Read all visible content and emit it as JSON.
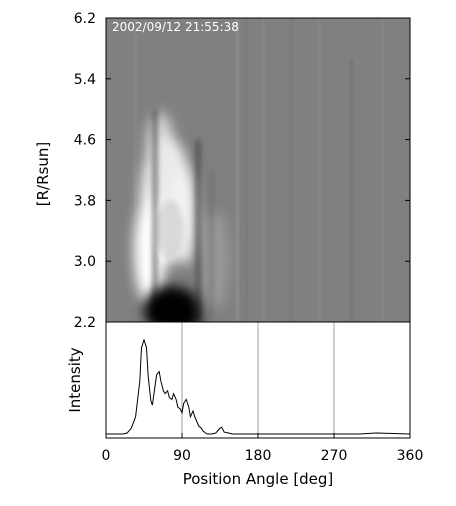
{
  "chart_data": [
    {
      "type": "heatmap",
      "title": "",
      "annotation": "2002/09/12 21:55:38",
      "xlabel": "",
      "ylabel": "[R/Rsun]",
      "xlim": [
        0,
        360
      ],
      "ylim": [
        2.2,
        6.2
      ],
      "y_ticks": [
        "2.2",
        "3.0",
        "3.8",
        "4.6",
        "5.4",
        "6.2"
      ],
      "colormap": "grayscale",
      "background_level": 0.5,
      "features": [
        {
          "name": "bright loop",
          "pa_range": [
            35,
            95
          ],
          "r_range": [
            2.4,
            4.6
          ],
          "level": 1.0
        },
        {
          "name": "dark core",
          "pa_range": [
            50,
            110
          ],
          "r_range": [
            2.2,
            2.6
          ],
          "level": 0.0
        }
      ]
    },
    {
      "type": "line",
      "title": "",
      "xlabel": "Position Angle [deg]",
      "ylabel": "Intensity",
      "xlim": [
        0,
        360
      ],
      "x_ticks": [
        "0",
        "90",
        "180",
        "270",
        "360"
      ],
      "grid_x": [
        90,
        180,
        270
      ],
      "series": [
        {
          "name": "",
          "x": [
            0,
            20,
            25,
            30,
            35,
            40,
            42,
            45,
            48,
            50,
            53,
            55,
            58,
            60,
            63,
            65,
            68,
            70,
            73,
            75,
            78,
            80,
            83,
            85,
            88,
            90,
            92,
            95,
            98,
            100,
            103,
            105,
            108,
            110,
            113,
            115,
            118,
            120,
            125,
            130,
            135,
            137,
            140,
            145,
            150,
            200,
            300,
            320,
            360
          ],
          "y": [
            0,
            0,
            0.01,
            0.06,
            0.18,
            0.55,
            0.9,
            0.98,
            0.9,
            0.6,
            0.35,
            0.3,
            0.5,
            0.62,
            0.65,
            0.55,
            0.45,
            0.42,
            0.45,
            0.38,
            0.36,
            0.42,
            0.36,
            0.28,
            0.26,
            0.22,
            0.32,
            0.36,
            0.28,
            0.18,
            0.24,
            0.18,
            0.12,
            0.08,
            0.06,
            0.03,
            0.01,
            0.0,
            0.0,
            0.01,
            0.06,
            0.07,
            0.02,
            0.01,
            0.0,
            0.0,
            0.0,
            0.01,
            0.0
          ]
        }
      ]
    }
  ]
}
